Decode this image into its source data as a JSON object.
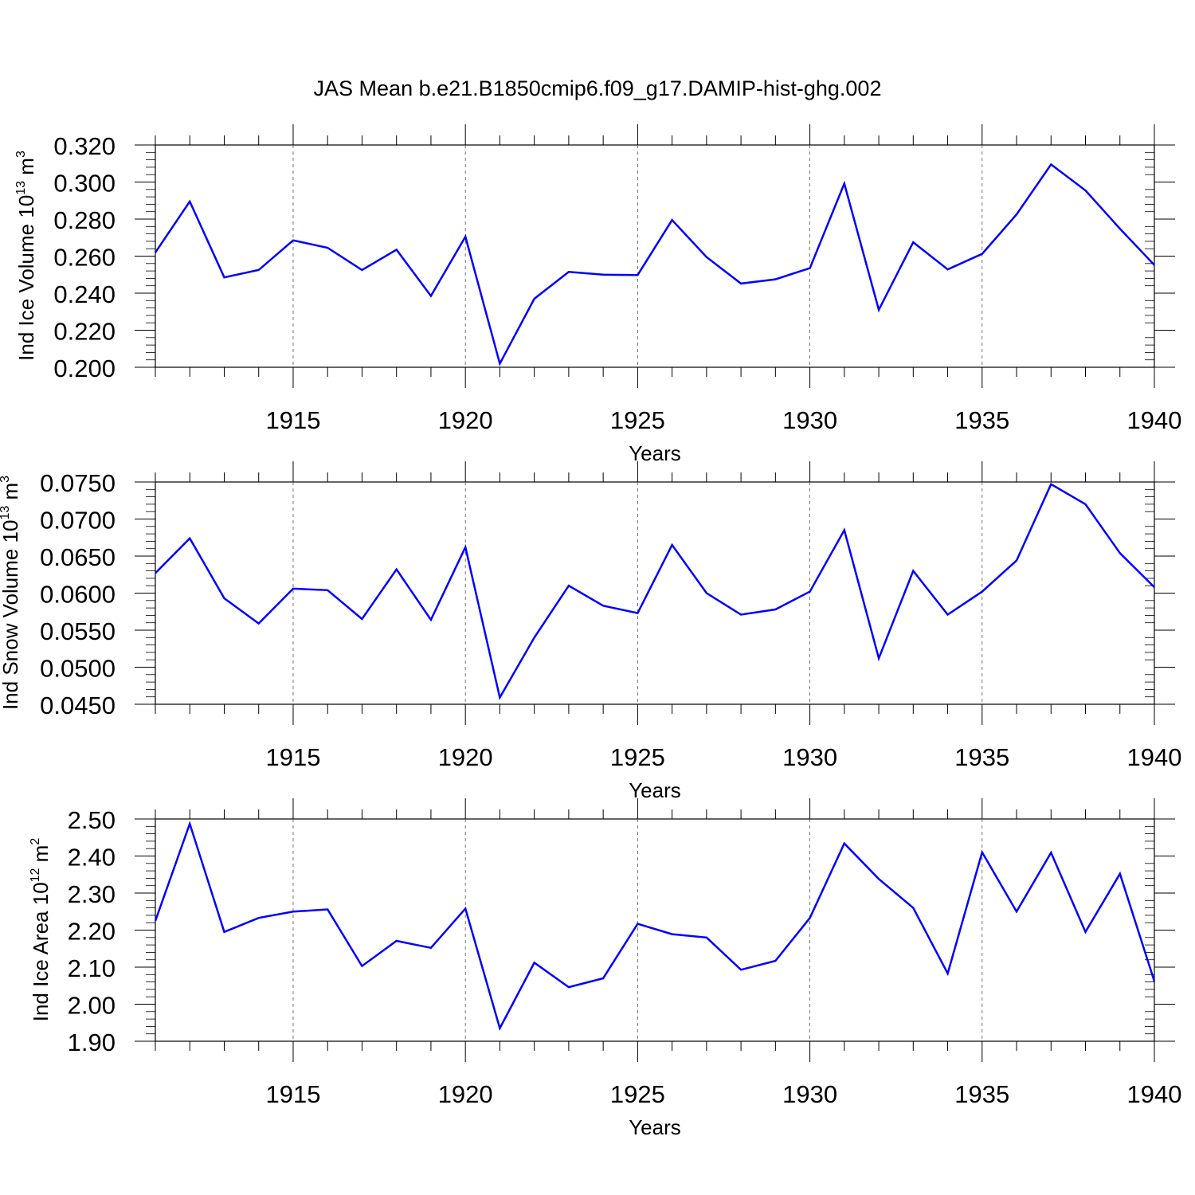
{
  "figure": {
    "title": "JAS Mean b.e21.B1850cmip6.f09_g17.DAMIP-hist-ghg.002",
    "line_color": "#0000ff"
  },
  "chart_data": [
    {
      "type": "line",
      "ylabel": {
        "prefix": "Ind Ice Volume 10",
        "exponent": "13",
        "unit": " m",
        "unit_exponent": "3"
      },
      "xlabel": "Years",
      "xlim": [
        1911,
        1940
      ],
      "ylim": [
        0.2,
        0.32
      ],
      "xticks": [
        1915,
        1920,
        1925,
        1930,
        1935,
        1940
      ],
      "yticks": [
        "0.200",
        "0.220",
        "0.240",
        "0.260",
        "0.280",
        "0.300",
        "0.320"
      ],
      "ytick_values": [
        0.2,
        0.22,
        0.24,
        0.26,
        0.28,
        0.3,
        0.32
      ],
      "x": [
        1911,
        1912,
        1913,
        1914,
        1915,
        1916,
        1917,
        1918,
        1919,
        1920,
        1921,
        1922,
        1923,
        1924,
        1925,
        1926,
        1927,
        1928,
        1929,
        1930,
        1931,
        1932,
        1933,
        1934,
        1935,
        1936,
        1937,
        1938,
        1939,
        1940
      ],
      "values": [
        0.262,
        0.2895,
        0.2485,
        0.2525,
        0.2685,
        0.2645,
        0.2525,
        0.2635,
        0.2385,
        0.2705,
        0.202,
        0.237,
        0.2515,
        0.25,
        0.2498,
        0.2795,
        0.2595,
        0.2452,
        0.2475,
        0.2535,
        0.2992,
        0.231,
        0.2675,
        0.2528,
        0.2612,
        0.2825,
        0.3095,
        0.2955,
        0.2748,
        0.2552
      ]
    },
    {
      "type": "line",
      "ylabel": {
        "prefix": "Ind Snow Volume 10",
        "exponent": "13",
        "unit": " m",
        "unit_exponent": "3"
      },
      "xlabel": "Years",
      "xlim": [
        1911,
        1940
      ],
      "ylim": [
        0.045,
        0.075
      ],
      "xticks": [
        1915,
        1920,
        1925,
        1930,
        1935,
        1940
      ],
      "yticks": [
        "0.0450",
        "0.0500",
        "0.0550",
        "0.0600",
        "0.0650",
        "0.0700",
        "0.0750"
      ],
      "ytick_values": [
        0.045,
        0.05,
        0.055,
        0.06,
        0.065,
        0.07,
        0.075
      ],
      "x": [
        1911,
        1912,
        1913,
        1914,
        1915,
        1916,
        1917,
        1918,
        1919,
        1920,
        1921,
        1922,
        1923,
        1924,
        1925,
        1926,
        1927,
        1928,
        1929,
        1930,
        1931,
        1932,
        1933,
        1934,
        1935,
        1936,
        1937,
        1938,
        1939,
        1940
      ],
      "values": [
        0.0627,
        0.0674,
        0.0593,
        0.0559,
        0.0606,
        0.0604,
        0.0565,
        0.0632,
        0.0564,
        0.0662,
        0.0459,
        0.054,
        0.061,
        0.0583,
        0.0573,
        0.0665,
        0.06,
        0.0571,
        0.0578,
        0.0602,
        0.0685,
        0.0512,
        0.063,
        0.0571,
        0.0602,
        0.0644,
        0.0747,
        0.072,
        0.0654,
        0.0608
      ]
    },
    {
      "type": "line",
      "ylabel": {
        "prefix": "Ind Ice Area 10",
        "exponent": "12",
        "unit": " m",
        "unit_exponent": "2"
      },
      "xlabel": "Years",
      "xlim": [
        1911,
        1940
      ],
      "ylim": [
        1.9,
        2.5
      ],
      "xticks": [
        1915,
        1920,
        1925,
        1930,
        1935,
        1940
      ],
      "yticks": [
        "1.90",
        "2.00",
        "2.10",
        "2.20",
        "2.30",
        "2.40",
        "2.50"
      ],
      "ytick_values": [
        1.9,
        2.0,
        2.1,
        2.2,
        2.3,
        2.4,
        2.5
      ],
      "x": [
        1911,
        1912,
        1913,
        1914,
        1915,
        1916,
        1917,
        1918,
        1919,
        1920,
        1921,
        1922,
        1923,
        1924,
        1925,
        1926,
        1927,
        1928,
        1929,
        1930,
        1931,
        1932,
        1933,
        1934,
        1935,
        1936,
        1937,
        1938,
        1939,
        1940
      ],
      "values": [
        2.225,
        2.487,
        2.195,
        2.233,
        2.25,
        2.256,
        2.103,
        2.171,
        2.152,
        2.258,
        1.935,
        2.112,
        2.046,
        2.07,
        2.217,
        2.189,
        2.18,
        2.093,
        2.117,
        2.233,
        2.434,
        2.338,
        2.26,
        2.083,
        2.41,
        2.25,
        2.409,
        2.195,
        2.352,
        2.062
      ]
    }
  ]
}
